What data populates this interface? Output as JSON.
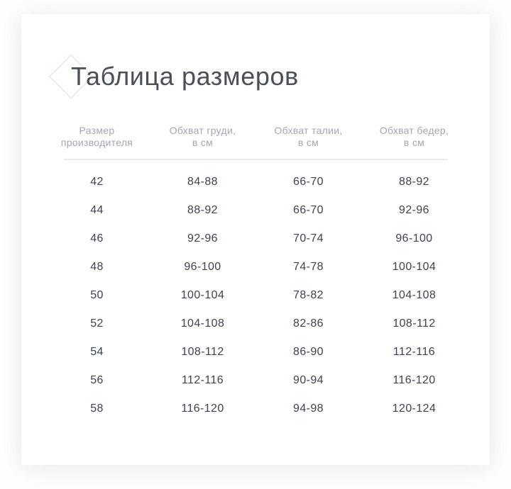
{
  "page": {
    "title": "Таблица размеров"
  },
  "table": {
    "headers": [
      {
        "line1": "Размер",
        "line2": "производителя"
      },
      {
        "line1": "Обхват груди,",
        "line2": "в см"
      },
      {
        "line1": "Обхват талии,",
        "line2": "в см"
      },
      {
        "line1": "Обхват бедер,",
        "line2": "в см"
      }
    ],
    "rows": [
      {
        "size": "42",
        "chest": "84-88",
        "waist": "66-70",
        "hips": "88-92"
      },
      {
        "size": "44",
        "chest": "88-92",
        "waist": "66-70",
        "hips": "92-96"
      },
      {
        "size": "46",
        "chest": "92-96",
        "waist": "70-74",
        "hips": "96-100"
      },
      {
        "size": "48",
        "chest": "96-100",
        "waist": "74-78",
        "hips": "100-104"
      },
      {
        "size": "50",
        "chest": "100-104",
        "waist": "78-82",
        "hips": "104-108"
      },
      {
        "size": "52",
        "chest": "104-108",
        "waist": "82-86",
        "hips": "108-112"
      },
      {
        "size": "54",
        "chest": "108-112",
        "waist": "86-90",
        "hips": "112-116"
      },
      {
        "size": "56",
        "chest": "112-116",
        "waist": "90-94",
        "hips": "116-120"
      },
      {
        "size": "58",
        "chest": "116-120",
        "waist": "94-98",
        "hips": "120-124"
      }
    ]
  },
  "colors": {
    "diamond_accent": "#f0d8cc",
    "title_text": "#4a4f58",
    "header_text": "#a2a7b4",
    "body_text": "#3d4250",
    "divider": "#e9ebf0",
    "card_background": "#ffffff"
  }
}
